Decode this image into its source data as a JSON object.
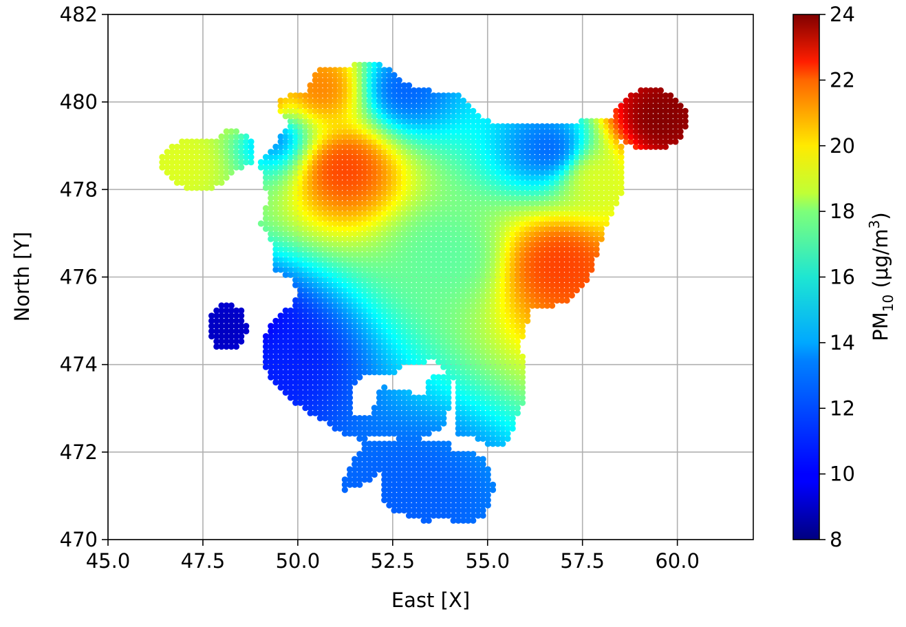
{
  "chart_data": {
    "type": "heatmap",
    "plot_kind": "interpolated spatial scatter map",
    "xlabel": "East [X]",
    "ylabel": "North [Y]",
    "xlim": [
      45.0,
      62.0
    ],
    "ylim": [
      470,
      482
    ],
    "xticks": [
      "45.0",
      "47.5",
      "50.0",
      "52.5",
      "55.0",
      "57.5",
      "60.0"
    ],
    "yticks": [
      "470",
      "472",
      "474",
      "476",
      "478",
      "480",
      "482"
    ],
    "grid": true,
    "colormap": "jet",
    "colorbar": {
      "label_main": "PM",
      "label_sub": "10",
      "label_rest": " (μg/m",
      "label_sup": "3",
      "label_close": ")",
      "range": [
        8,
        24
      ],
      "ticks": [
        "8",
        "10",
        "12",
        "14",
        "16",
        "18",
        "20",
        "22",
        "24"
      ]
    },
    "hotspots": [
      {
        "x": 59.5,
        "y": 479.6,
        "value": 24
      },
      {
        "x": 56.9,
        "y": 476.3,
        "value": 21
      },
      {
        "x": 51.2,
        "y": 478.5,
        "value": 21
      },
      {
        "x": 50.6,
        "y": 480.3,
        "value": 20
      },
      {
        "x": 49.1,
        "y": 479.8,
        "value": 21
      },
      {
        "x": 48.2,
        "y": 474.8,
        "value": 9
      },
      {
        "x": 49.5,
        "y": 474.2,
        "value": 10.5
      },
      {
        "x": 49.3,
        "y": 479.3,
        "value": 11
      },
      {
        "x": 56.7,
        "y": 478.9,
        "value": 11.5
      },
      {
        "x": 52.8,
        "y": 480.3,
        "value": 11.5
      },
      {
        "x": 53.0,
        "y": 471.0,
        "value": 11.5
      },
      {
        "x": 47.0,
        "y": 478.6,
        "value": 17.5
      },
      {
        "x": 54.0,
        "y": 476.5,
        "value": 15.5
      },
      {
        "x": 57.8,
        "y": 478.3,
        "value": 17.5
      }
    ]
  }
}
